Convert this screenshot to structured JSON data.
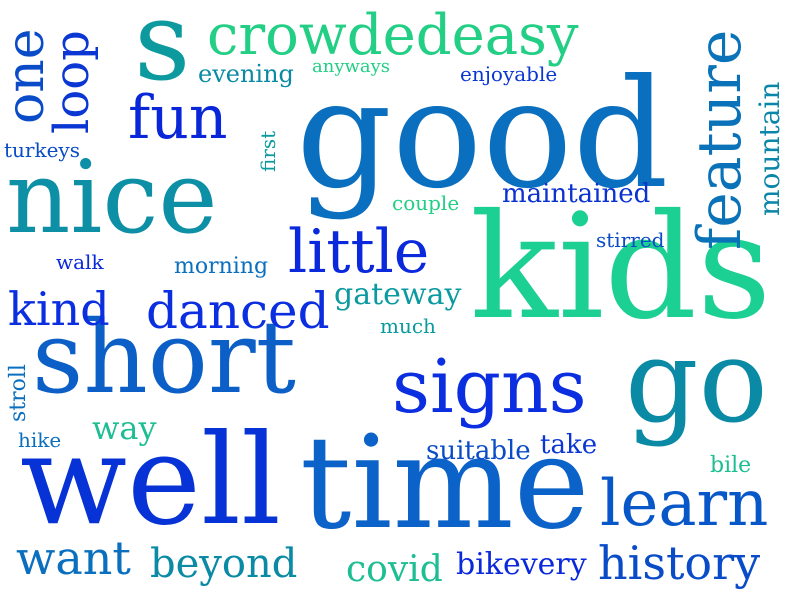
{
  "words": [
    {
      "text": "good",
      "color": "#0a6fbf"
    },
    {
      "text": "kids",
      "color": "#1ccf92"
    },
    {
      "text": "short",
      "color": "#0b5fc6"
    },
    {
      "text": "nice",
      "color": "#0d8fa6"
    },
    {
      "text": "well",
      "color": "#0632d6"
    },
    {
      "text": "time",
      "color": "#0b62c8"
    },
    {
      "text": "go",
      "color": "#0a8aa4"
    },
    {
      "text": "s",
      "color": "#0c9a9e"
    },
    {
      "text": "crowdedeasy",
      "color": "#22cf84"
    },
    {
      "text": "signs",
      "color": "#0a2ee0"
    },
    {
      "text": "little",
      "color": "#0a28dc"
    },
    {
      "text": "fun",
      "color": "#0926d8"
    },
    {
      "text": "learn",
      "color": "#0757c8"
    },
    {
      "text": "danced",
      "color": "#0a2ee0"
    },
    {
      "text": "kind",
      "color": "#0a2ee0"
    },
    {
      "text": "history",
      "color": "#0a4cc8"
    },
    {
      "text": "feature",
      "color": "#0a72b8"
    },
    {
      "text": "want",
      "color": "#0a6fbf"
    },
    {
      "text": "beyond",
      "color": "#0a8aa4"
    },
    {
      "text": "covid",
      "color": "#1cbe92"
    },
    {
      "text": "bikevery",
      "color": "#0a28dc"
    },
    {
      "text": "one",
      "color": "#0a4cc8"
    },
    {
      "text": "loop",
      "color": "#0a36d4"
    },
    {
      "text": "mountain",
      "color": "#0a86a8"
    },
    {
      "text": "maintained",
      "color": "#0a32d0"
    },
    {
      "text": "gateway",
      "color": "#0a9aa0"
    },
    {
      "text": "evening",
      "color": "#0a8aa4"
    },
    {
      "text": "anyways",
      "color": "#22cf84"
    },
    {
      "text": "enjoyable",
      "color": "#0a36d4"
    },
    {
      "text": "turkeys",
      "color": "#0a4cc8"
    },
    {
      "text": "first",
      "color": "#0a9aa0"
    },
    {
      "text": "couple",
      "color": "#22cf84"
    },
    {
      "text": "stirred",
      "color": "#0a4cc8"
    },
    {
      "text": "walk",
      "color": "#0a28dc"
    },
    {
      "text": "morning",
      "color": "#0a6fbf"
    },
    {
      "text": "much",
      "color": "#0a9aa0"
    },
    {
      "text": "stroll",
      "color": "#0a6fbf"
    },
    {
      "text": "hike",
      "color": "#0a6fbf"
    },
    {
      "text": "way",
      "color": "#1cbe92"
    },
    {
      "text": "suitable",
      "color": "#0a4cc8"
    },
    {
      "text": "take",
      "color": "#0a36d4"
    },
    {
      "text": "bile",
      "color": "#1cbe92"
    }
  ]
}
